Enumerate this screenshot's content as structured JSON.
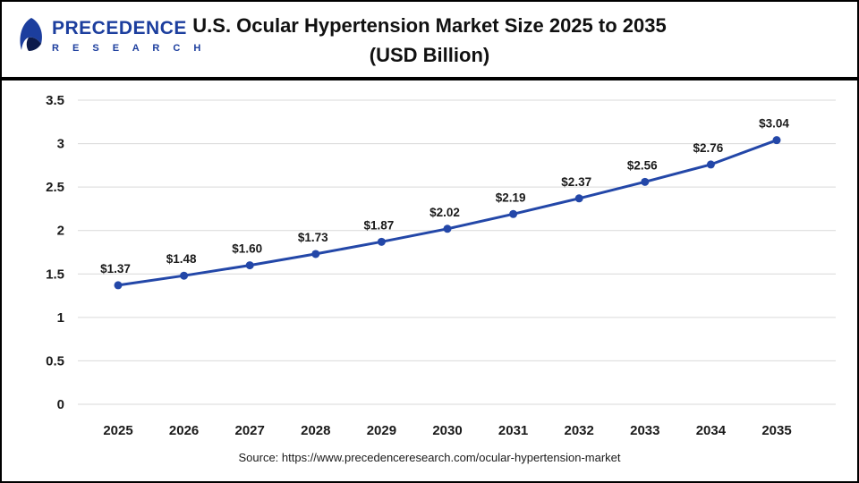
{
  "logo": {
    "text": "PRECEDENCE",
    "subtext": "R E S E A R C H"
  },
  "header": {
    "title_line1": "U.S. Ocular Hypertension Market Size 2025 to 2035",
    "title_line2": "(USD Billion)"
  },
  "chart_data": {
    "type": "line",
    "title": "U.S. Ocular Hypertension Market Size 2025 to 2035 (USD Billion)",
    "categories": [
      "2025",
      "2026",
      "2027",
      "2028",
      "2029",
      "2030",
      "2031",
      "2032",
      "2033",
      "2034",
      "2035"
    ],
    "values": [
      1.37,
      1.48,
      1.6,
      1.73,
      1.87,
      2.02,
      2.19,
      2.37,
      2.56,
      2.76,
      3.04
    ],
    "point_labels": [
      "$1.37",
      "$1.48",
      "$1.60",
      "$1.73",
      "$1.87",
      "$2.02",
      "$2.19",
      "$2.37",
      "$2.56",
      "$2.76",
      "$3.04"
    ],
    "y_ticks": [
      "0",
      "0.5",
      "1",
      "1.5",
      "2",
      "2.5",
      "3",
      "3.5"
    ],
    "ylim": [
      0,
      3.5
    ],
    "ytick_step": 0.5,
    "grid": "horizontal",
    "legend": "none",
    "line_color": "#2347a8",
    "grid_color": "#d9d9d9",
    "label_color": "#1a1a1a",
    "marker": "circle"
  },
  "footer": {
    "source": "Source: https://www.precedenceresearch.com/ocular-hypertension-market"
  }
}
